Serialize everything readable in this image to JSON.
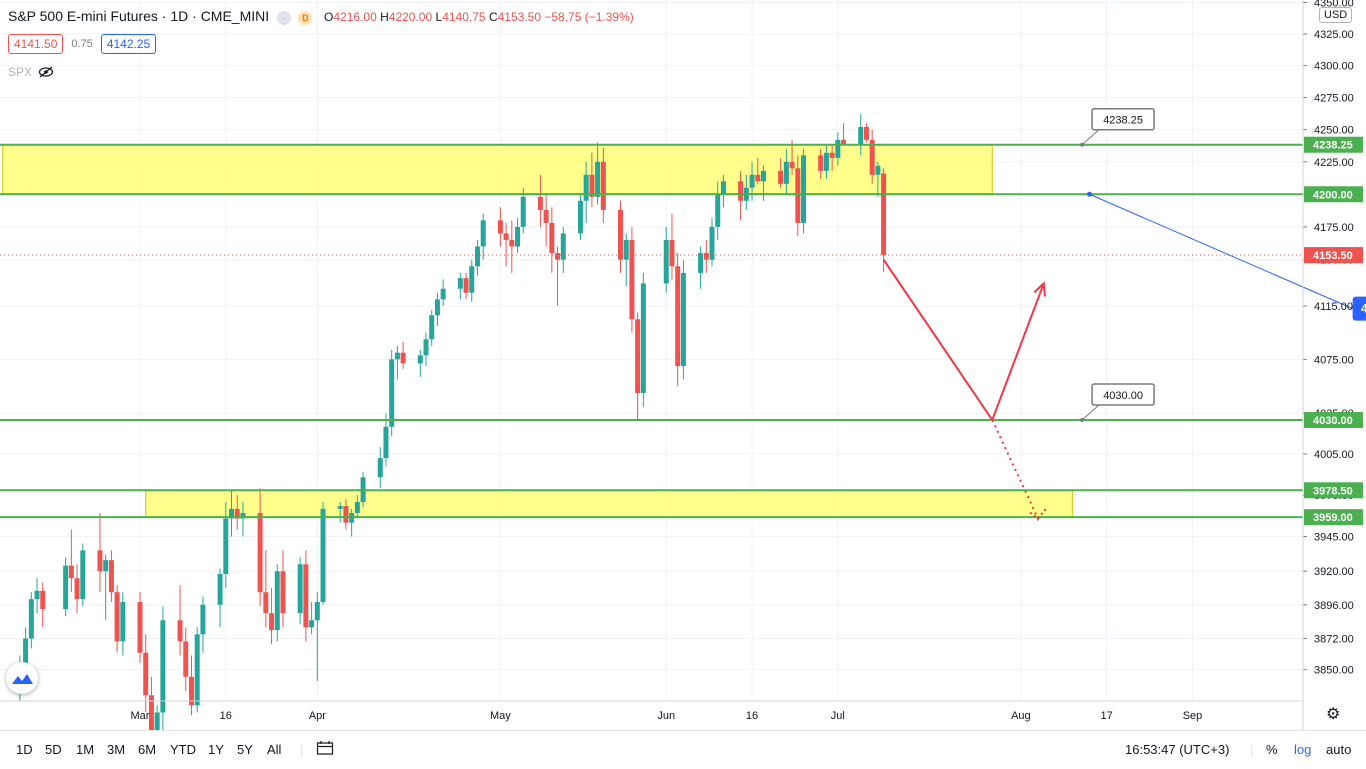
{
  "header": {
    "title": "S&P 500 E-mini Futures · 1D · CME_MINI",
    "badge": "D",
    "ohlc": [
      {
        "k": "O",
        "v": "4216.00"
      },
      {
        "k": "H",
        "v": "4220.00"
      },
      {
        "k": "L",
        "v": "4140.75"
      },
      {
        "k": "C",
        "v": "4153.50"
      }
    ],
    "change": "−58.75 (−1.39%)",
    "sell": "4141.50",
    "spread": "0.75",
    "buy": "4142.25",
    "indicator": "SPX"
  },
  "currency": "USD",
  "colors": {
    "up": "#26a69a",
    "down": "#ef5350",
    "zone": "#ffff66",
    "line": "#4caf50",
    "arrow": "#f23645",
    "trend": "#2962ff",
    "grid": "#f0f3fa"
  },
  "chart_data": {
    "type": "candlestick",
    "scale": "log",
    "grid": true,
    "y_ticks": [
      "4350.00",
      "4325.00",
      "4300.00",
      "4275.00",
      "4250.00",
      "4225.00",
      "4200.00",
      "4175.00",
      "4150.00",
      "4115.00",
      "4075.00",
      "4035.00",
      "4005.00",
      "3975.00",
      "3945.00",
      "3920.00",
      "3896.00",
      "3872.00",
      "3850.00"
    ],
    "y_range": [
      3828,
      4352
    ],
    "x_labels": [
      {
        "label": "Mar",
        "date": "2021-03-01"
      },
      {
        "label": "16",
        "date": "2021-03-16"
      },
      {
        "label": "Apr",
        "date": "2021-04-01"
      },
      {
        "label": "May",
        "date": "2021-05-03"
      },
      {
        "label": "Jun",
        "date": "2021-06-01"
      },
      {
        "label": "16",
        "date": "2021-06-16"
      },
      {
        "label": "Jul",
        "date": "2021-07-01"
      },
      {
        "label": "Aug",
        "date": "2021-08-02"
      },
      {
        "label": "17",
        "date": "2021-08-17"
      },
      {
        "label": "Sep",
        "date": "2021-09-01"
      }
    ],
    "candles": [
      {
        "d": "2021-02-08",
        "o": 3840,
        "h": 3860,
        "l": 3828,
        "c": 3852
      },
      {
        "d": "2021-02-09",
        "o": 3852,
        "h": 3880,
        "l": 3845,
        "c": 3872
      },
      {
        "d": "2021-02-10",
        "o": 3872,
        "h": 3905,
        "l": 3865,
        "c": 3900
      },
      {
        "d": "2021-02-11",
        "o": 3900,
        "h": 3915,
        "l": 3890,
        "c": 3906
      },
      {
        "d": "2021-02-12",
        "o": 3906,
        "h": 3912,
        "l": 3880,
        "c": 3893
      },
      {
        "d": "2021-02-16",
        "o": 3893,
        "h": 3930,
        "l": 3888,
        "c": 3924
      },
      {
        "d": "2021-02-17",
        "o": 3924,
        "h": 3950,
        "l": 3905,
        "c": 3915
      },
      {
        "d": "2021-02-18",
        "o": 3915,
        "h": 3925,
        "l": 3890,
        "c": 3900
      },
      {
        "d": "2021-02-19",
        "o": 3900,
        "h": 3940,
        "l": 3895,
        "c": 3935
      },
      {
        "d": "2021-02-22",
        "o": 3935,
        "h": 3962,
        "l": 3905,
        "c": 3920
      },
      {
        "d": "2021-02-23",
        "o": 3920,
        "h": 3932,
        "l": 3885,
        "c": 3928
      },
      {
        "d": "2021-02-24",
        "o": 3928,
        "h": 3935,
        "l": 3898,
        "c": 3905
      },
      {
        "d": "2021-02-25",
        "o": 3905,
        "h": 3910,
        "l": 3862,
        "c": 3870
      },
      {
        "d": "2021-02-26",
        "o": 3870,
        "h": 3905,
        "l": 3860,
        "c": 3898
      },
      {
        "d": "2021-03-01",
        "o": 3898,
        "h": 3905,
        "l": 3855,
        "c": 3862
      },
      {
        "d": "2021-03-02",
        "o": 3862,
        "h": 3875,
        "l": 3820,
        "c": 3832
      },
      {
        "d": "2021-03-03",
        "o": 3832,
        "h": 3845,
        "l": 3785,
        "c": 3795
      },
      {
        "d": "2021-03-04",
        "o": 3795,
        "h": 3825,
        "l": 3790,
        "c": 3820
      },
      {
        "d": "2021-03-05",
        "o": 3820,
        "h": 3895,
        "l": 3790,
        "c": 3885
      },
      {
        "d": "2021-03-08",
        "o": 3885,
        "h": 3910,
        "l": 3860,
        "c": 3870
      },
      {
        "d": "2021-03-09",
        "o": 3870,
        "h": 3880,
        "l": 3835,
        "c": 3845
      },
      {
        "d": "2021-03-10",
        "o": 3845,
        "h": 3860,
        "l": 3818,
        "c": 3825
      },
      {
        "d": "2021-03-11",
        "o": 3825,
        "h": 3880,
        "l": 3820,
        "c": 3875
      },
      {
        "d": "2021-03-12",
        "o": 3875,
        "h": 3902,
        "l": 3862,
        "c": 3896
      },
      {
        "d": "2021-03-15",
        "o": 3896,
        "h": 3922,
        "l": 3880,
        "c": 3918
      },
      {
        "d": "2021-03-16",
        "o": 3918,
        "h": 3970,
        "l": 3908,
        "c": 3958
      },
      {
        "d": "2021-03-17",
        "o": 3958,
        "h": 3978,
        "l": 3945,
        "c": 3965
      },
      {
        "d": "2021-03-18",
        "o": 3965,
        "h": 3975,
        "l": 3950,
        "c": 3958
      },
      {
        "d": "2021-03-19",
        "o": 3958,
        "h": 3970,
        "l": 3945,
        "c": 3962
      },
      {
        "d": "2021-03-22",
        "o": 3962,
        "h": 3980,
        "l": 3895,
        "c": 3905
      },
      {
        "d": "2021-03-23",
        "o": 3905,
        "h": 3935,
        "l": 3880,
        "c": 3890
      },
      {
        "d": "2021-03-24",
        "o": 3890,
        "h": 3908,
        "l": 3868,
        "c": 3878
      },
      {
        "d": "2021-03-25",
        "o": 3878,
        "h": 3925,
        "l": 3870,
        "c": 3920
      },
      {
        "d": "2021-03-26",
        "o": 3920,
        "h": 3935,
        "l": 3880,
        "c": 3890
      },
      {
        "d": "2021-03-29",
        "o": 3890,
        "h": 3930,
        "l": 3882,
        "c": 3925
      },
      {
        "d": "2021-03-30",
        "o": 3925,
        "h": 3935,
        "l": 3870,
        "c": 3880
      },
      {
        "d": "2021-03-31",
        "o": 3880,
        "h": 3898,
        "l": 3875,
        "c": 3885
      },
      {
        "d": "2021-04-01",
        "o": 3885,
        "h": 3905,
        "l": 3842,
        "c": 3898
      },
      {
        "d": "2021-04-02",
        "o": 3898,
        "h": 3970,
        "l": 3896,
        "c": 3965
      },
      {
        "d": "2021-04-05",
        "o": 3965,
        "h": 3970,
        "l": 3955,
        "c": 3967
      },
      {
        "d": "2021-04-06",
        "o": 3967,
        "h": 3972,
        "l": 3950,
        "c": 3955
      },
      {
        "d": "2021-04-07",
        "o": 3955,
        "h": 3965,
        "l": 3945,
        "c": 3962
      },
      {
        "d": "2021-04-08",
        "o": 3962,
        "h": 3975,
        "l": 3958,
        "c": 3970
      },
      {
        "d": "2021-04-09",
        "o": 3970,
        "h": 3992,
        "l": 3966,
        "c": 3988
      },
      {
        "d": "2021-04-12",
        "o": 3988,
        "h": 4010,
        "l": 3980,
        "c": 4002
      },
      {
        "d": "2021-04-13",
        "o": 4002,
        "h": 4035,
        "l": 3996,
        "c": 4025
      },
      {
        "d": "2021-04-14",
        "o": 4025,
        "h": 4082,
        "l": 4018,
        "c": 4075
      },
      {
        "d": "2021-04-15",
        "o": 4075,
        "h": 4085,
        "l": 4060,
        "c": 4080
      },
      {
        "d": "2021-04-16",
        "o": 4080,
        "h": 4088,
        "l": 4068,
        "c": 4072
      },
      {
        "d": "2021-04-19",
        "o": 4072,
        "h": 4082,
        "l": 4062,
        "c": 4078
      },
      {
        "d": "2021-04-20",
        "o": 4078,
        "h": 4095,
        "l": 4070,
        "c": 4090
      },
      {
        "d": "2021-04-21",
        "o": 4090,
        "h": 4112,
        "l": 4085,
        "c": 4108
      },
      {
        "d": "2021-04-22",
        "o": 4108,
        "h": 4125,
        "l": 4100,
        "c": 4120
      },
      {
        "d": "2021-04-23",
        "o": 4120,
        "h": 4135,
        "l": 4115,
        "c": 4128
      },
      {
        "d": "2021-04-26",
        "o": 4128,
        "h": 4140,
        "l": 4120,
        "c": 4136
      },
      {
        "d": "2021-04-27",
        "o": 4136,
        "h": 4140,
        "l": 4120,
        "c": 4125
      },
      {
        "d": "2021-04-28",
        "o": 4125,
        "h": 4150,
        "l": 4118,
        "c": 4145
      },
      {
        "d": "2021-04-29",
        "o": 4145,
        "h": 4165,
        "l": 4138,
        "c": 4160
      },
      {
        "d": "2021-04-30",
        "o": 4160,
        "h": 4185,
        "l": 4150,
        "c": 4180
      },
      {
        "d": "2021-05-03",
        "o": 4180,
        "h": 4190,
        "l": 4160,
        "c": 4170
      },
      {
        "d": "2021-05-04",
        "o": 4170,
        "h": 4178,
        "l": 4145,
        "c": 4165
      },
      {
        "d": "2021-05-05",
        "o": 4165,
        "h": 4180,
        "l": 4140,
        "c": 4160
      },
      {
        "d": "2021-05-06",
        "o": 4160,
        "h": 4182,
        "l": 4155,
        "c": 4175
      },
      {
        "d": "2021-05-07",
        "o": 4175,
        "h": 4205,
        "l": 4170,
        "c": 4198
      },
      {
        "d": "2021-05-10",
        "o": 4198,
        "h": 4215,
        "l": 4175,
        "c": 4188
      },
      {
        "d": "2021-05-11",
        "o": 4188,
        "h": 4200,
        "l": 4160,
        "c": 4178
      },
      {
        "d": "2021-05-12",
        "o": 4178,
        "h": 4190,
        "l": 4140,
        "c": 4155
      },
      {
        "d": "2021-05-13",
        "o": 4155,
        "h": 4160,
        "l": 4115,
        "c": 4150
      },
      {
        "d": "2021-05-14",
        "o": 4150,
        "h": 4175,
        "l": 4140,
        "c": 4170
      },
      {
        "d": "2021-05-17",
        "o": 4170,
        "h": 4200,
        "l": 4165,
        "c": 4195
      },
      {
        "d": "2021-05-18",
        "o": 4195,
        "h": 4225,
        "l": 4178,
        "c": 4215
      },
      {
        "d": "2021-05-19",
        "o": 4215,
        "h": 4232,
        "l": 4190,
        "c": 4198
      },
      {
        "d": "2021-05-20",
        "o": 4198,
        "h": 4240,
        "l": 4192,
        "c": 4225
      },
      {
        "d": "2021-05-21",
        "o": 4225,
        "h": 4236,
        "l": 4178,
        "c": 4188
      },
      {
        "d": "2021-05-24",
        "o": 4188,
        "h": 4195,
        "l": 4140,
        "c": 4150
      },
      {
        "d": "2021-05-25",
        "o": 4150,
        "h": 4170,
        "l": 4130,
        "c": 4165
      },
      {
        "d": "2021-05-26",
        "o": 4165,
        "h": 4175,
        "l": 4095,
        "c": 4105
      },
      {
        "d": "2021-05-27",
        "o": 4105,
        "h": 4110,
        "l": 4030,
        "c": 4050
      },
      {
        "d": "2021-05-28",
        "o": 4050,
        "h": 4140,
        "l": 4040,
        "c": 4132
      },
      {
        "d": "2021-06-01",
        "o": 4132,
        "h": 4175,
        "l": 4125,
        "c": 4165
      },
      {
        "d": "2021-06-02",
        "o": 4165,
        "h": 4185,
        "l": 4135,
        "c": 4145
      },
      {
        "d": "2021-06-03",
        "o": 4145,
        "h": 4155,
        "l": 4055,
        "c": 4070
      },
      {
        "d": "2021-06-04",
        "o": 4070,
        "h": 4150,
        "l": 4060,
        "c": 4140
      },
      {
        "d": "2021-06-07",
        "o": 4140,
        "h": 4160,
        "l": 4128,
        "c": 4155
      },
      {
        "d": "2021-06-08",
        "o": 4155,
        "h": 4165,
        "l": 4140,
        "c": 4150
      },
      {
        "d": "2021-06-09",
        "o": 4150,
        "h": 4182,
        "l": 4145,
        "c": 4175
      },
      {
        "d": "2021-06-10",
        "o": 4175,
        "h": 4210,
        "l": 4165,
        "c": 4200
      },
      {
        "d": "2021-06-11",
        "o": 4200,
        "h": 4215,
        "l": 4190,
        "c": 4210
      },
      {
        "d": "2021-06-14",
        "o": 4210,
        "h": 4218,
        "l": 4180,
        "c": 4195
      },
      {
        "d": "2021-06-15",
        "o": 4195,
        "h": 4215,
        "l": 4188,
        "c": 4205
      },
      {
        "d": "2021-06-16",
        "o": 4205,
        "h": 4225,
        "l": 4195,
        "c": 4215
      },
      {
        "d": "2021-06-17",
        "o": 4215,
        "h": 4228,
        "l": 4208,
        "c": 4210
      },
      {
        "d": "2021-06-18",
        "o": 4210,
        "h": 4222,
        "l": 4195,
        "c": 4218
      },
      {
        "d": "2021-06-21",
        "o": 4218,
        "h": 4228,
        "l": 4205,
        "c": 4208
      },
      {
        "d": "2021-06-22",
        "o": 4208,
        "h": 4235,
        "l": 4200,
        "c": 4225
      },
      {
        "d": "2021-06-23",
        "o": 4225,
        "h": 4242,
        "l": 4215,
        "c": 4220
      },
      {
        "d": "2021-06-24",
        "o": 4220,
        "h": 4230,
        "l": 4168,
        "c": 4178
      },
      {
        "d": "2021-06-25",
        "o": 4178,
        "h": 4235,
        "l": 4170,
        "c": 4230
      },
      {
        "d": "2021-06-28",
        "o": 4230,
        "h": 4235,
        "l": 4212,
        "c": 4218
      },
      {
        "d": "2021-06-29",
        "o": 4218,
        "h": 4238,
        "l": 4212,
        "c": 4232
      },
      {
        "d": "2021-06-30",
        "o": 4232,
        "h": 4238,
        "l": 4218,
        "c": 4228
      },
      {
        "d": "2021-07-01",
        "o": 4228,
        "h": 4248,
        "l": 4222,
        "c": 4242
      },
      {
        "d": "2021-07-02",
        "o": 4242,
        "h": 4255,
        "l": 4238,
        "c": 4238
      },
      {
        "d": "2021-07-05",
        "o": 4238,
        "h": 4262,
        "l": 4230,
        "c": 4252
      },
      {
        "d": "2021-07-06",
        "o": 4252,
        "h": 4255,
        "l": 4240,
        "c": 4242
      },
      {
        "d": "2021-07-07",
        "o": 4242,
        "h": 4250,
        "l": 4208,
        "c": 4215
      },
      {
        "d": "2021-07-08",
        "o": 4215,
        "h": 4225,
        "l": 4198,
        "c": 4222
      },
      {
        "d": "2021-07-09",
        "o": 4216,
        "h": 4220,
        "l": 4140.75,
        "c": 4153.5
      }
    ],
    "levels": [
      {
        "label": "4238.25",
        "value": 4238.25
      },
      {
        "label": "4200.00",
        "value": 4200.0
      },
      {
        "label": "4030.00",
        "value": 4030.0
      },
      {
        "label": "3978.50",
        "value": 3978.5
      },
      {
        "label": "3959.00",
        "value": 3959.0
      }
    ],
    "last_price": "4153.50",
    "zones": [
      {
        "from": "2021-02-05",
        "to": "2021-07-28",
        "low": 4200.5,
        "high": 4238.25
      },
      {
        "from": "2021-03-02",
        "to": "2021-08-11",
        "low": 3959,
        "high": 3978.5
      }
    ],
    "callouts": [
      "4238.25",
      "4030.00"
    ],
    "trendline": {
      "start": {
        "d": "2021-08-14",
        "v": 4200
      },
      "end": {
        "d": "2021-09-29",
        "v": 4113
      },
      "label": "4200.00"
    },
    "projection": {
      "solid": [
        {
          "d": "2021-07-09",
          "v": 4150
        },
        {
          "d": "2021-07-28",
          "v": 4030
        },
        {
          "d": "2021-08-06",
          "v": 4132
        }
      ],
      "dotted": [
        {
          "d": "2021-07-28",
          "v": 4030
        },
        {
          "d": "2021-08-05",
          "v": 3958
        }
      ]
    }
  },
  "toolbar": {
    "ranges": [
      "1D",
      "5D",
      "1M",
      "3M",
      "6M",
      "YTD",
      "1Y",
      "5Y",
      "All"
    ],
    "time": "16:53:47 (UTC+3)",
    "percent": "%",
    "log": "log",
    "auto": "auto"
  }
}
